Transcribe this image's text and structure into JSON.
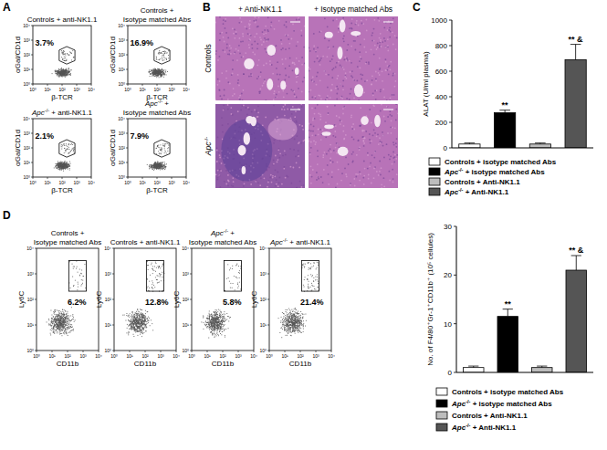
{
  "panel_labels": [
    "A",
    "B",
    "C",
    "D"
  ],
  "panel_a": {
    "y_label": "αGal/CD1d",
    "x_label": "β-TCR",
    "axis_ticks": [
      "10⁰",
      "10¹",
      "10²",
      "10³",
      "10⁴"
    ],
    "plots": [
      {
        "title_lines": [
          "Controls + anti-NK1.1"
        ],
        "percent": "3.7%"
      },
      {
        "title_lines": [
          "Controls +",
          "Isotype matched Abs"
        ],
        "percent": "16.9%"
      },
      {
        "title_lines": [
          "Apc-/- + anti-NK1.1"
        ],
        "percent": "2.1%"
      },
      {
        "title_lines": [
          "Apc-/- +",
          "Isotype matched Abs"
        ],
        "percent": "7.9%"
      }
    ]
  },
  "panel_b": {
    "columns": [
      "+ Anti-NK1.1",
      "+ Isotype matched Abs"
    ],
    "rows": [
      "Controls",
      "Apc-/-"
    ]
  },
  "panel_d_flow": {
    "y_label": "Ly6C",
    "x_label": "CD11b",
    "axis_ticks": [
      "10⁰",
      "10¹",
      "10²",
      "10³",
      "10⁴"
    ],
    "plots": [
      {
        "title_lines": [
          "Controls +",
          "Isotype matched Abs"
        ],
        "percent": "6.2%"
      },
      {
        "title_lines": [
          "Controls + anti-NK1.1"
        ],
        "percent": "12.8%"
      },
      {
        "title_lines": [
          "Apc-/- +",
          "Isotype matched Abs"
        ],
        "percent": "5.8%"
      },
      {
        "title_lines": [
          "Apc-/- + anti-NK1.1"
        ],
        "percent": "21.4%"
      }
    ]
  },
  "chart_data": [
    {
      "type": "bar",
      "y_label": "ALAT (U/ml plasma)",
      "categories": [
        "Controls + isotype matched Abs",
        "Apc-/- + isotype matched Abs",
        "Controls + Anti-NK1.1",
        "Apc-/- + Anti-NK1.1"
      ],
      "values": [
        30,
        275,
        30,
        690
      ],
      "errors": [
        8,
        20,
        8,
        120
      ],
      "colors": [
        "#ffffff",
        "#000000",
        "#bdbdbd",
        "#555555"
      ],
      "annotations": [
        null,
        "**",
        null,
        "** &"
      ],
      "ylim": [
        0,
        1000
      ],
      "yticks": [
        0,
        200,
        400,
        600,
        800,
        1000
      ],
      "legend": "bottom",
      "tick_labels": "y"
    },
    {
      "type": "bar",
      "y_label": "No. of F4/80⁺Gr-1⁺CD11b⁺ (10⁵ cellules)",
      "categories": [
        "Controls + isotype matched Abs",
        "Apc-/- + isotype matched Abs",
        "Controls + Anti-NK1.1",
        "Apc-/- + Anti-NK1.1"
      ],
      "values": [
        1,
        11.5,
        1,
        21
      ],
      "errors": [
        0.3,
        1.5,
        0.3,
        3
      ],
      "colors": [
        "#ffffff",
        "#000000",
        "#bdbdbd",
        "#555555"
      ],
      "annotations": [
        null,
        "**",
        null,
        "** &"
      ],
      "ylim": [
        0,
        30
      ],
      "yticks": [
        0,
        10,
        20,
        30
      ],
      "legend": "bottom",
      "tick_labels": "y"
    }
  ]
}
